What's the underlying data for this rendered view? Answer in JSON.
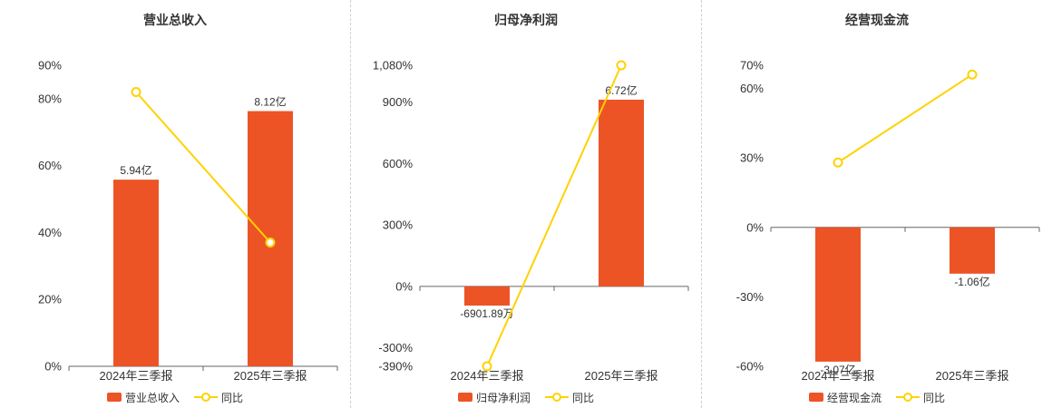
{
  "colors": {
    "bar": "#ec5426",
    "line": "#ffd200",
    "axis": "#666666",
    "divider": "#cfcfcf",
    "text": "#333333"
  },
  "chart_data": [
    {
      "type": "bar",
      "title": "营业总收入",
      "categories": [
        "2024年三季报",
        "2025年三季报"
      ],
      "series": [
        {
          "name": "营业总收入",
          "type": "bar",
          "value_labels": [
            "5.94亿",
            "8.12亿"
          ],
          "display_pct": [
            55.8,
            76.3
          ],
          "label_side": [
            "above",
            "above"
          ]
        },
        {
          "name": "同比",
          "type": "line",
          "values": [
            82,
            37
          ]
        }
      ],
      "ylim": [
        0,
        90
      ],
      "yticks": [
        {
          "value": 0,
          "label": "0%"
        },
        {
          "value": 20,
          "label": "20%"
        },
        {
          "value": 40,
          "label": "40%"
        },
        {
          "value": 60,
          "label": "60%"
        },
        {
          "value": 80,
          "label": "80%"
        },
        {
          "value": 90,
          "label": "90%"
        }
      ],
      "legend_position": "bottom",
      "grid": false
    },
    {
      "type": "bar",
      "title": "归母净利润",
      "categories": [
        "2024年三季报",
        "2025年三季报"
      ],
      "series": [
        {
          "name": "归母净利润",
          "type": "bar",
          "value_labels": [
            "-6901.89万",
            "6.72亿"
          ],
          "display_pct": [
            -93.7,
            912
          ],
          "label_side": [
            "below",
            "above"
          ]
        },
        {
          "name": "同比",
          "type": "line",
          "values": [
            -390,
            1080
          ]
        }
      ],
      "ylim": [
        -390,
        1080
      ],
      "yticks": [
        {
          "value": -390,
          "label": "-390%"
        },
        {
          "value": -300,
          "label": "-300%"
        },
        {
          "value": 0,
          "label": "0%"
        },
        {
          "value": 300,
          "label": "300%"
        },
        {
          "value": 600,
          "label": "600%"
        },
        {
          "value": 900,
          "label": "900%"
        },
        {
          "value": 1080,
          "label": "1,080%"
        }
      ],
      "legend_position": "bottom",
      "grid": false
    },
    {
      "type": "bar",
      "title": "经营现金流",
      "categories": [
        "2024年三季报",
        "2025年三季报"
      ],
      "series": [
        {
          "name": "经营现金流",
          "type": "bar",
          "value_labels": [
            "-3.07亿",
            "-1.06亿"
          ],
          "display_pct": [
            -58,
            -20
          ],
          "label_side": [
            "below",
            "below"
          ]
        },
        {
          "name": "同比",
          "type": "line",
          "values": [
            28,
            66
          ]
        }
      ],
      "ylim": [
        -60,
        70
      ],
      "yticks": [
        {
          "value": -60,
          "label": "-60%"
        },
        {
          "value": -30,
          "label": "-30%"
        },
        {
          "value": 0,
          "label": "0%"
        },
        {
          "value": 30,
          "label": "30%"
        },
        {
          "value": 60,
          "label": "60%"
        },
        {
          "value": 70,
          "label": "70%"
        }
      ],
      "legend_position": "bottom",
      "grid": false
    }
  ]
}
